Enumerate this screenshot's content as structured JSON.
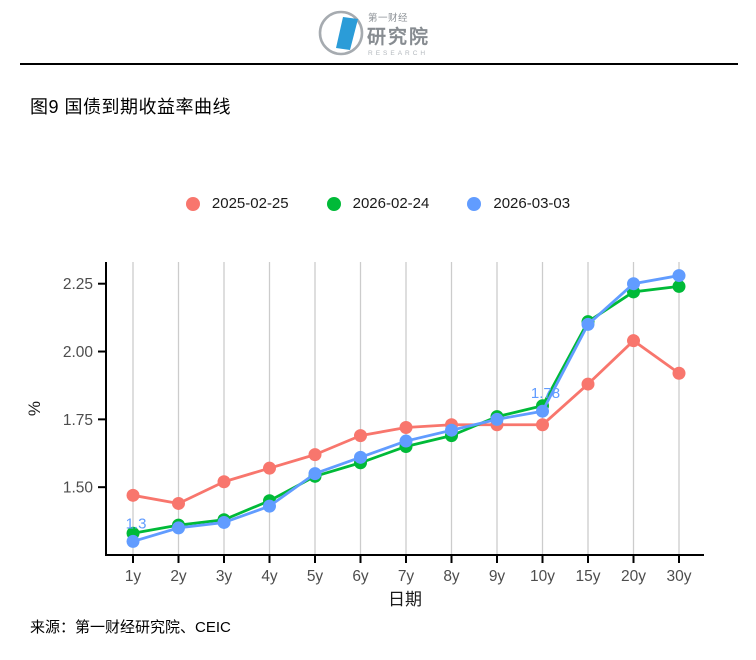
{
  "header": {
    "logo": {
      "brand_line1": "第一财经",
      "brand_line2": "研究院",
      "brand_line3": "RESEARCH",
      "brand_color": "#2B9CD8",
      "gray_color": "#9aa0a6"
    }
  },
  "title": "图9 国债到期收益率曲线",
  "source": "来源：第一财经研究院、CEIC",
  "chart_data": {
    "type": "line",
    "title": "图9 国债到期收益率曲线",
    "xlabel": "日期",
    "ylabel": "%",
    "categories": [
      "1y",
      "2y",
      "3y",
      "4y",
      "5y",
      "6y",
      "7y",
      "8y",
      "9y",
      "10y",
      "15y",
      "20y",
      "30y"
    ],
    "series": [
      {
        "name": "2025-02-25",
        "color": "#F8766D",
        "values": [
          1.47,
          1.44,
          1.52,
          1.57,
          1.62,
          1.69,
          1.72,
          1.73,
          1.73,
          1.73,
          1.88,
          2.04,
          1.92
        ]
      },
      {
        "name": "2026-02-24",
        "color": "#00BA38",
        "values": [
          1.33,
          1.36,
          1.38,
          1.45,
          1.54,
          1.59,
          1.65,
          1.69,
          1.76,
          1.8,
          2.11,
          2.22,
          2.24
        ]
      },
      {
        "name": "2026-03-03",
        "color": "#619CFF",
        "values": [
          1.3,
          1.35,
          1.37,
          1.43,
          1.55,
          1.61,
          1.67,
          1.71,
          1.75,
          1.78,
          2.1,
          2.25,
          2.28
        ]
      }
    ],
    "yticks": [
      1.5,
      1.75,
      2.0,
      2.25
    ],
    "ylim": [
      1.25,
      2.33
    ],
    "grid": "vertical-only",
    "legend_position": "top-center",
    "axis_text_color": "#4d4d4d",
    "gridline_color": "#cccccc",
    "annotations": [
      {
        "text": "1.3",
        "series_index": 2,
        "category_index": 0,
        "color": "#619CFF"
      },
      {
        "text": "1.78",
        "series_index": 2,
        "category_index": 9,
        "color": "#619CFF"
      }
    ]
  }
}
